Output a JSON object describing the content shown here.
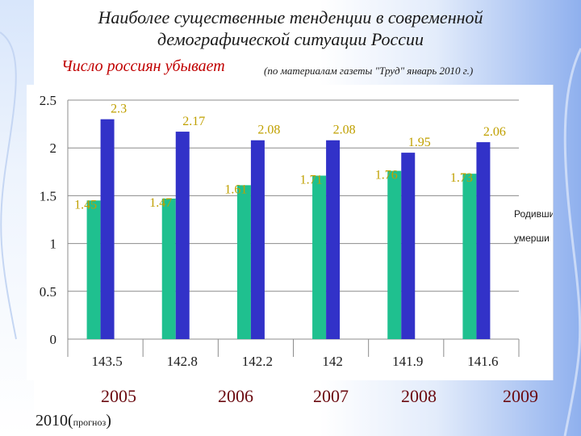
{
  "header": {
    "title_line1": "Наиболее существенные тенденции в современной",
    "title_line2": "демографической ситуации России",
    "subtitle": "Число россиян убывает",
    "source": "(по материалам газеты \"Труд\" январь 2010 г.)"
  },
  "footer": {
    "years": [
      "2005",
      "2006",
      "2007",
      "2008",
      "2009"
    ],
    "forecast_year": "2010(",
    "forecast_word": "прогноз",
    "forecast_close": ")"
  },
  "chart_data": {
    "type": "bar",
    "categories": [
      "143.5",
      "142.8",
      "142.2",
      "142",
      "141.9",
      "141.6"
    ],
    "series": [
      {
        "name": "Родивши",
        "values": [
          1.45,
          1.47,
          1.61,
          1.71,
          1.76,
          1.73
        ],
        "labels": [
          "1.45",
          "1.47",
          "1.61",
          "1.71",
          "1.76",
          "1.73"
        ],
        "color": "#1fc08f"
      },
      {
        "name": "умерши",
        "values": [
          2.3,
          2.17,
          2.08,
          2.08,
          1.95,
          2.06
        ],
        "labels": [
          "2.3",
          "2.17",
          "2.08",
          "2.08",
          "1.95",
          "2.06"
        ],
        "color": "#3232c8"
      }
    ],
    "yticks": [
      "0",
      "0.5",
      "1",
      "1.5",
      "2",
      "2.5"
    ],
    "ylim": [
      0,
      2.5
    ],
    "grid": true,
    "legend": "right",
    "label_color": "#c0a000"
  }
}
